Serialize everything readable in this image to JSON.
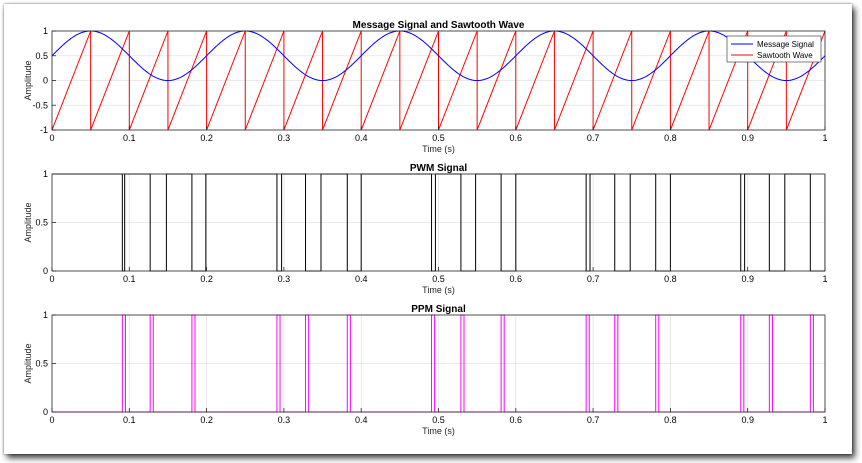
{
  "colors": {
    "message": "#0000ff",
    "sawtooth": "#ff0000",
    "pwm": "#000000",
    "ppm": "#ff00ff",
    "grid": "#e3e3e3",
    "axis": "#262626"
  },
  "chart_data": [
    {
      "type": "line",
      "title": "Message Signal and Sawtooth Wave",
      "xlabel": "Time (s)",
      "ylabel": "Amplitude",
      "xlim": [
        0,
        1
      ],
      "ylim": [
        -1,
        1
      ],
      "xticks": [
        "0",
        "0.1",
        "0.2",
        "0.3",
        "0.4",
        "0.5",
        "0.6",
        "0.7",
        "0.8",
        "0.9",
        "1"
      ],
      "yticks": [
        "-1",
        "-0.5",
        "0",
        "0.5",
        "1"
      ],
      "grid": true,
      "legend": "top-right",
      "series": [
        {
          "name": "Message Signal",
          "color": "#0000ff",
          "function": "0.5 + 0.5*sin(2*pi*5*t)",
          "frequency_hz": 5,
          "offset": 0.5,
          "amplitude": 0.5
        },
        {
          "name": "Sawtooth Wave",
          "color": "#ff0000",
          "function": "sawtooth",
          "frequency_hz": 20,
          "min": -1,
          "max": 1
        }
      ]
    },
    {
      "type": "line",
      "title": "PWM Signal",
      "xlabel": "Time (s)",
      "ylabel": "Amplitude",
      "xlim": [
        0,
        1
      ],
      "ylim": [
        0,
        1
      ],
      "xticks": [
        "0",
        "0.1",
        "0.2",
        "0.3",
        "0.4",
        "0.5",
        "0.6",
        "0.7",
        "0.8",
        "0.9",
        "1"
      ],
      "yticks": [
        "0",
        "0.5",
        "1"
      ],
      "grid": true,
      "color": "#000000",
      "low_intervals": [
        [
          0.091,
          0.094
        ],
        [
          0.127,
          0.148
        ],
        [
          0.181,
          0.199
        ],
        [
          0.291,
          0.297
        ],
        [
          0.328,
          0.348
        ],
        [
          0.382,
          0.4
        ],
        [
          0.491,
          0.496
        ],
        [
          0.529,
          0.548
        ],
        [
          0.581,
          0.6
        ],
        [
          0.691,
          0.696
        ],
        [
          0.728,
          0.748
        ],
        [
          0.781,
          0.8
        ],
        [
          0.891,
          0.896
        ],
        [
          0.928,
          0.948
        ],
        [
          0.981,
          1.0
        ]
      ]
    },
    {
      "type": "line",
      "title": "PPM Signal",
      "xlabel": "Time (s)",
      "ylabel": "Amplitude",
      "xlim": [
        0,
        1
      ],
      "ylim": [
        0,
        1
      ],
      "xticks": [
        "0",
        "0.1",
        "0.2",
        "0.3",
        "0.4",
        "0.5",
        "0.6",
        "0.7",
        "0.8",
        "0.9",
        "1"
      ],
      "yticks": [
        "0",
        "0.5",
        "1"
      ],
      "grid": true,
      "color": "#ff00ff",
      "pulse_positions": [
        0.091,
        0.127,
        0.181,
        0.291,
        0.328,
        0.382,
        0.491,
        0.529,
        0.581,
        0.691,
        0.728,
        0.781,
        0.891,
        0.928,
        0.981
      ],
      "pulse_width": 0.004
    }
  ]
}
